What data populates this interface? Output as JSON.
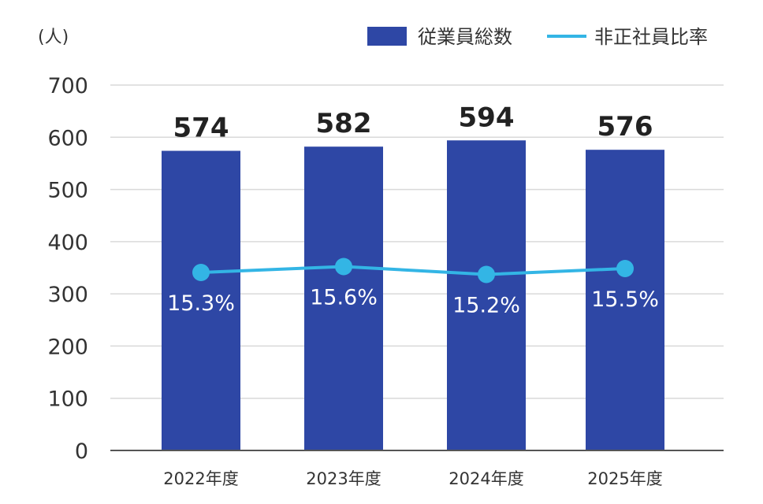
{
  "chart_data": {
    "type": "bar",
    "unit_label": "(人)",
    "categories": [
      "2022年度",
      "2023年度",
      "2024年度",
      "2025年度"
    ],
    "series": [
      {
        "name": "従業員総数",
        "type": "bar",
        "values": [
          574,
          582,
          594,
          576
        ],
        "labels": [
          "574",
          "582",
          "594",
          "576"
        ],
        "color": "#2e47a5"
      },
      {
        "name": "非正社員比率",
        "type": "line",
        "values": [
          15.3,
          15.6,
          15.2,
          15.5
        ],
        "labels": [
          "15.3%",
          "15.6%",
          "15.2%",
          "15.5%"
        ],
        "color": "#33b5e5"
      }
    ],
    "ylim": [
      0,
      700
    ],
    "yticks": [
      "0",
      "100",
      "200",
      "300",
      "400",
      "500",
      "600",
      "700"
    ],
    "grid": true,
    "legend": "top-right"
  }
}
